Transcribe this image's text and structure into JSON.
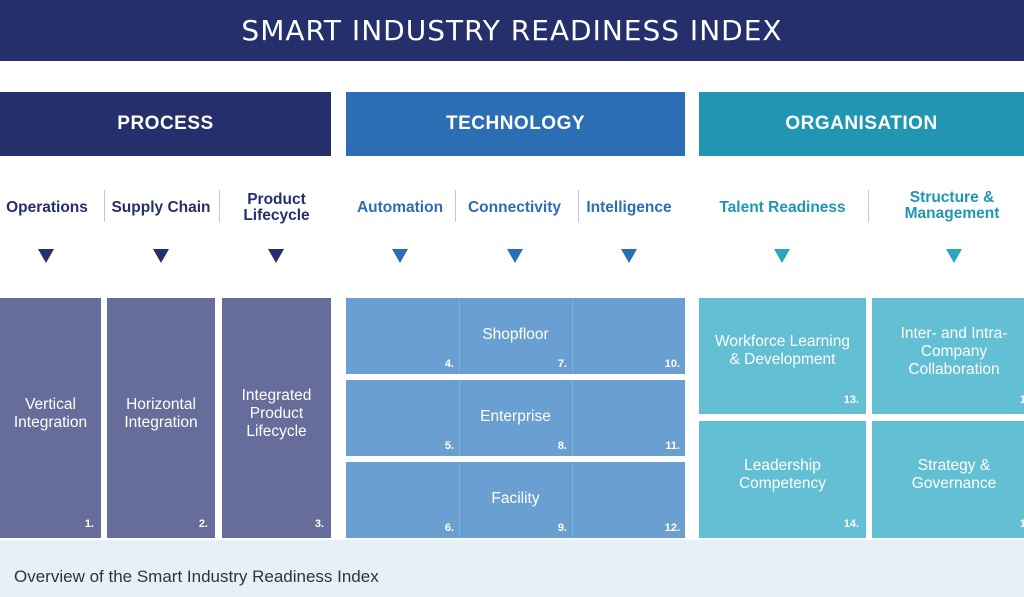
{
  "title": "SMART INDUSTRY READINESS INDEX",
  "pillars": {
    "process": {
      "label": "PROCESS",
      "color": "#252f6b"
    },
    "technology": {
      "label": "TECHNOLOGY",
      "color": "#2b6eb3"
    },
    "organisation": {
      "label": "ORGANISATION",
      "color": "#2196b3"
    }
  },
  "dimensions": {
    "operations": "Operations",
    "supply_chain": "Supply Chain",
    "product_lifecycle": [
      "Product",
      "Lifecycle"
    ],
    "automation": "Automation",
    "connectivity": "Connectivity",
    "intelligence": "Intelligence",
    "talent_readiness": "Talent Readiness",
    "structure_management": [
      "Structure &",
      "Management"
    ]
  },
  "process_cells": [
    {
      "lines": [
        "Vertical",
        "Integration"
      ],
      "num": "1."
    },
    {
      "lines": [
        "Horizontal",
        "Integration"
      ],
      "num": "2."
    },
    {
      "lines": [
        "Integrated",
        "Product",
        "Lifecycle"
      ],
      "num": "3."
    }
  ],
  "technology_rows": [
    {
      "label": "Shopfloor",
      "nums": [
        "4.",
        "7.",
        "10."
      ]
    },
    {
      "label": "Enterprise",
      "nums": [
        "5.",
        "8.",
        "11."
      ]
    },
    {
      "label": "Facility",
      "nums": [
        "6.",
        "9.",
        "12."
      ]
    }
  ],
  "organisation_cells": [
    {
      "lines": [
        "Workforce Learning",
        "& Development"
      ],
      "num": "13."
    },
    {
      "lines": [
        "Inter- and Intra-",
        "Company",
        "Collaboration"
      ],
      "num": "1"
    },
    {
      "lines": [
        "Leadership",
        "Competency"
      ],
      "num": "14."
    },
    {
      "lines": [
        "Strategy &",
        "Governance"
      ],
      "num": "1"
    }
  ],
  "caption": "Overview of the Smart Industry Readiness Index"
}
